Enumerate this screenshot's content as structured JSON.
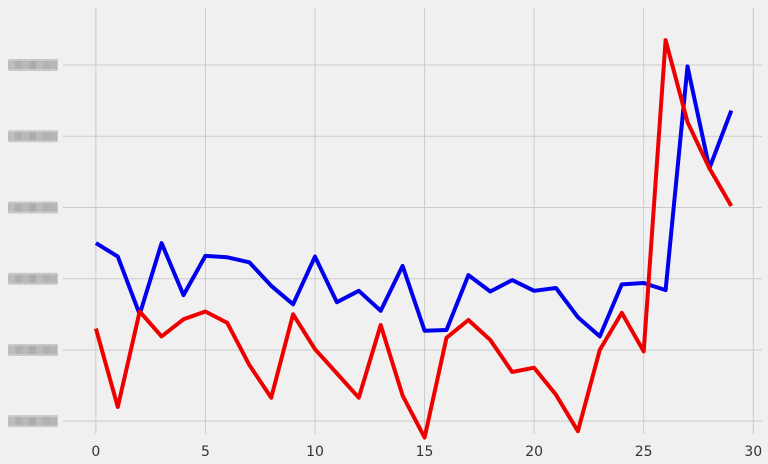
{
  "chart_data": {
    "type": "line",
    "x": [
      0,
      1,
      2,
      3,
      4,
      5,
      6,
      7,
      8,
      9,
      10,
      11,
      12,
      13,
      14,
      15,
      16,
      17,
      18,
      19,
      20,
      21,
      22,
      23,
      24,
      25,
      26,
      27,
      28,
      29
    ],
    "xlim": [
      -1.5,
      30.4
    ],
    "ylim": [
      -0.18,
      5.8
    ],
    "x_ticks": [
      0,
      5,
      10,
      15,
      20,
      25,
      30
    ],
    "x_tick_labels": [
      "0",
      "5",
      "10",
      "15",
      "20",
      "25",
      "30"
    ],
    "y_ticks": [
      0,
      1,
      2,
      3,
      4,
      5
    ],
    "y_tick_labels_obscured": true,
    "grid": true,
    "series": [
      {
        "color": "#0000ee",
        "values": [
          2.5,
          2.31,
          1.5,
          2.5,
          1.77,
          2.32,
          2.3,
          2.23,
          1.9,
          1.64,
          2.31,
          1.67,
          1.83,
          1.55,
          2.18,
          1.27,
          1.28,
          2.05,
          1.82,
          1.98,
          1.83,
          1.87,
          1.46,
          1.19,
          1.92,
          1.94,
          1.84,
          4.98,
          3.55,
          4.36
        ]
      },
      {
        "color": "#ee0000",
        "values": [
          1.3,
          0.2,
          1.54,
          1.19,
          1.43,
          1.54,
          1.38,
          0.79,
          0.33,
          1.5,
          1.01,
          0.67,
          0.33,
          1.35,
          0.36,
          -0.23,
          1.17,
          1.42,
          1.14,
          0.69,
          0.75,
          0.37,
          -0.14,
          1.0,
          1.52,
          0.98,
          5.35,
          4.2,
          3.55,
          3.02
        ]
      }
    ]
  }
}
